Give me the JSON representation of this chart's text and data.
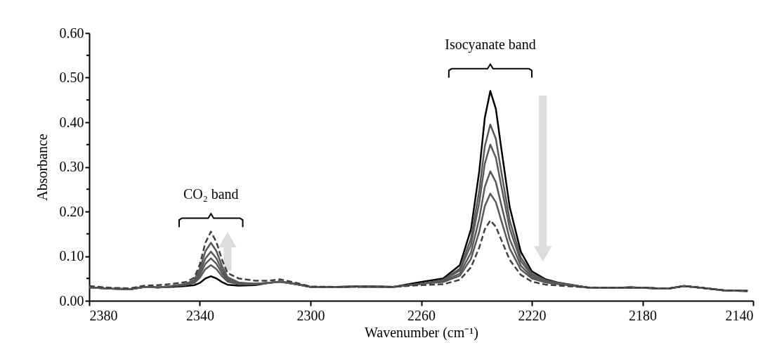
{
  "chart_data": {
    "type": "line",
    "xlabel": "Wavenumber (cm⁻¹)",
    "ylabel": "Absorbance",
    "x": [
      2380,
      2372,
      2365,
      2360,
      2355,
      2350,
      2345,
      2342,
      2340,
      2338,
      2336,
      2334,
      2332,
      2330,
      2326,
      2320,
      2315,
      2311,
      2305,
      2300,
      2290,
      2280,
      2270,
      2260,
      2252,
      2246,
      2242,
      2239,
      2237,
      2235,
      2233,
      2231,
      2228,
      2224,
      2220,
      2215,
      2210,
      2200,
      2190,
      2184,
      2175,
      2170,
      2165,
      2160,
      2150,
      2142
    ],
    "series": [
      {
        "color": "#000000",
        "line_style": "solid",
        "values": [
          0.03,
          0.027,
          0.026,
          0.031,
          0.03,
          0.031,
          0.033,
          0.035,
          0.04,
          0.05,
          0.055,
          0.05,
          0.042,
          0.036,
          0.034,
          0.035,
          0.04,
          0.043,
          0.037,
          0.031,
          0.031,
          0.032,
          0.031,
          0.042,
          0.05,
          0.08,
          0.16,
          0.29,
          0.41,
          0.47,
          0.43,
          0.34,
          0.21,
          0.11,
          0.066,
          0.048,
          0.04,
          0.03,
          0.029,
          0.03,
          0.028,
          0.028,
          0.033,
          0.03,
          0.023,
          0.022
        ]
      },
      {
        "color": "#595959",
        "line_style": "solid",
        "values": [
          0.03,
          0.027,
          0.026,
          0.031,
          0.03,
          0.033,
          0.036,
          0.04,
          0.052,
          0.071,
          0.08,
          0.071,
          0.055,
          0.043,
          0.037,
          0.037,
          0.04,
          0.043,
          0.037,
          0.031,
          0.031,
          0.032,
          0.031,
          0.038,
          0.047,
          0.072,
          0.139,
          0.247,
          0.346,
          0.395,
          0.363,
          0.288,
          0.18,
          0.097,
          0.061,
          0.046,
          0.039,
          0.03,
          0.029,
          0.03,
          0.028,
          0.028,
          0.033,
          0.03,
          0.023,
          0.022
        ]
      },
      {
        "color": "#595959",
        "line_style": "solid",
        "values": [
          0.03,
          0.027,
          0.026,
          0.031,
          0.03,
          0.033,
          0.036,
          0.042,
          0.058,
          0.083,
          0.095,
          0.083,
          0.062,
          0.046,
          0.038,
          0.037,
          0.04,
          0.043,
          0.037,
          0.031,
          0.031,
          0.032,
          0.031,
          0.038,
          0.046,
          0.068,
          0.125,
          0.22,
          0.307,
          0.35,
          0.321,
          0.256,
          0.162,
          0.089,
          0.057,
          0.044,
          0.039,
          0.03,
          0.029,
          0.03,
          0.028,
          0.028,
          0.033,
          0.03,
          0.023,
          0.022
        ]
      },
      {
        "color": "#595959",
        "line_style": "solid",
        "values": [
          0.03,
          0.027,
          0.026,
          0.031,
          0.03,
          0.033,
          0.037,
          0.044,
          0.064,
          0.095,
          0.11,
          0.095,
          0.069,
          0.049,
          0.039,
          0.038,
          0.04,
          0.043,
          0.037,
          0.031,
          0.031,
          0.032,
          0.031,
          0.038,
          0.044,
          0.061,
          0.108,
          0.184,
          0.255,
          0.29,
          0.266,
          0.214,
          0.138,
          0.079,
          0.053,
          0.043,
          0.038,
          0.03,
          0.029,
          0.03,
          0.028,
          0.028,
          0.033,
          0.03,
          0.023,
          0.022
        ]
      },
      {
        "color": "#595959",
        "line_style": "solid",
        "values": [
          0.03,
          0.027,
          0.026,
          0.031,
          0.03,
          0.033,
          0.038,
          0.047,
          0.072,
          0.111,
          0.13,
          0.111,
          0.078,
          0.053,
          0.041,
          0.038,
          0.04,
          0.043,
          0.037,
          0.031,
          0.031,
          0.032,
          0.031,
          0.038,
          0.042,
          0.056,
          0.094,
          0.155,
          0.212,
          0.24,
          0.221,
          0.179,
          0.117,
          0.07,
          0.05,
          0.041,
          0.037,
          0.03,
          0.029,
          0.03,
          0.028,
          0.028,
          0.033,
          0.03,
          0.023,
          0.022
        ]
      },
      {
        "color": "#404040",
        "line_style": "dashed",
        "values": [
          0.033,
          0.029,
          0.028,
          0.034,
          0.035,
          0.038,
          0.042,
          0.052,
          0.082,
          0.13,
          0.155,
          0.131,
          0.092,
          0.062,
          0.05,
          0.045,
          0.045,
          0.048,
          0.04,
          0.032,
          0.031,
          0.032,
          0.031,
          0.035,
          0.037,
          0.047,
          0.075,
          0.119,
          0.16,
          0.18,
          0.166,
          0.136,
          0.092,
          0.058,
          0.043,
          0.036,
          0.034,
          0.03,
          0.029,
          0.03,
          0.028,
          0.028,
          0.033,
          0.03,
          0.023,
          0.022
        ]
      }
    ],
    "xlim": [
      2380,
      2140
    ],
    "xticks": [
      2380,
      2340,
      2300,
      2260,
      2220,
      2180,
      2140
    ],
    "ylim": [
      0,
      0.6
    ],
    "yticks": [
      {
        "value": 0,
        "label": "0.00"
      },
      {
        "value": 0.05,
        "label": null
      },
      {
        "value": 0.1,
        "label": "0.10"
      },
      {
        "value": 0.15,
        "label": null
      },
      {
        "value": 0.2,
        "label": "0.20"
      },
      {
        "value": 0.25,
        "label": null
      },
      {
        "value": 0.3,
        "label": "0.30"
      },
      {
        "value": 0.35,
        "label": null
      },
      {
        "value": 0.4,
        "label": "0.40"
      },
      {
        "value": 0.45,
        "label": null
      },
      {
        "value": 0.5,
        "label": "0.50"
      },
      {
        "value": 0.55,
        "label": null
      },
      {
        "value": 0.6,
        "label": "0.60"
      }
    ],
    "annotations": [
      "CO₂ band",
      "Isocyanate band"
    ],
    "grid": false
  }
}
